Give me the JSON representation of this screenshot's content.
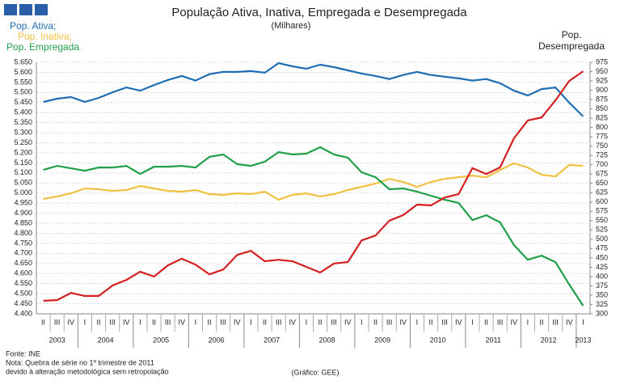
{
  "chart_data": {
    "type": "line",
    "title": "População Ativa, Inativa, Empregada e Desempregada",
    "subtitle": "(Milhares)",
    "y2_label": [
      "Pop.",
      "Desempregada"
    ],
    "categories": [
      "II",
      "III",
      "IV",
      "I",
      "II",
      "III",
      "IV",
      "I",
      "II",
      "III",
      "IV",
      "I",
      "II",
      "III",
      "IV",
      "I",
      "II",
      "III",
      "IV",
      "I",
      "II",
      "III",
      "IV",
      "I",
      "II",
      "III",
      "IV",
      "I",
      "II",
      "III",
      "IV",
      "I",
      "II",
      "III",
      "IV",
      "I",
      "II",
      "III",
      "IV",
      "I"
    ],
    "years": [
      "2003",
      "2004",
      "2005",
      "2006",
      "2007",
      "2008",
      "2009",
      "2010",
      "2011",
      "2012",
      "2013"
    ],
    "series": [
      {
        "name": "Pop. Ativa;",
        "color": "#1f6db3",
        "values": [
          5453,
          5469,
          5477,
          5453,
          5473,
          5501,
          5525,
          5509,
          5537,
          5562,
          5582,
          5559,
          5591,
          5602,
          5602,
          5606,
          5598,
          5646,
          5630,
          5618,
          5638,
          5626,
          5610,
          5594,
          5582,
          5567,
          5587,
          5602,
          5587,
          5578,
          5570,
          5559,
          5567,
          5546,
          5509,
          5485,
          5517,
          5525,
          5449,
          5381
        ]
      },
      {
        "name": "Pop. Inativa;",
        "color": "#f0c040",
        "values": [
          4971,
          4983,
          4999,
          5023,
          5019,
          5011,
          5015,
          5035,
          5023,
          5011,
          5007,
          5015,
          4995,
          4991,
          4999,
          4995,
          5007,
          4967,
          4991,
          4999,
          4983,
          4995,
          5015,
          5031,
          5047,
          5071,
          5055,
          5031,
          5055,
          5071,
          5079,
          5087,
          5079,
          5115,
          5148,
          5127,
          5091,
          5083,
          5140,
          5135
        ]
      },
      {
        "name": "Pop. Empregada",
        "color": "#21a04a",
        "values": [
          5115,
          5135,
          5123,
          5111,
          5127,
          5127,
          5135,
          5095,
          5131,
          5131,
          5135,
          5127,
          5180,
          5192,
          5144,
          5135,
          5156,
          5204,
          5192,
          5196,
          5228,
          5192,
          5176,
          5103,
          5079,
          5019,
          5023,
          5007,
          4987,
          4967,
          4951,
          4866,
          4890,
          4854,
          4742,
          4669,
          4689,
          4657,
          4545,
          4440
        ]
      },
      {
        "name": "Pop. Desempregada",
        "color": "#d42020",
        "axis": "y2",
        "values": [
          335,
          337,
          356,
          348,
          348,
          376,
          391,
          413,
          400,
          430,
          448,
          432,
          406,
          419,
          458,
          469,
          441,
          445,
          441,
          426,
          411,
          435,
          439,
          497,
          510,
          550,
          565,
          593,
          591,
          612,
          621,
          691,
          675,
          693,
          771,
          819,
          827,
          873,
          925,
          951
        ]
      }
    ],
    "ylim": [
      4400,
      5650
    ],
    "yticks": [
      {
        "value": 4400,
        "label": "4.400"
      },
      {
        "value": 4450,
        "label": "4.450"
      },
      {
        "value": 4500,
        "label": "4.500"
      },
      {
        "value": 4550,
        "label": "4.550"
      },
      {
        "value": 4600,
        "label": "4.600"
      },
      {
        "value": 4650,
        "label": "4.650"
      },
      {
        "value": 4700,
        "label": "4.700"
      },
      {
        "value": 4750,
        "label": "4.750"
      },
      {
        "value": 4800,
        "label": "4.800"
      },
      {
        "value": 4850,
        "label": "4.850"
      },
      {
        "value": 4900,
        "label": "4.900"
      },
      {
        "value": 4950,
        "label": "4.950"
      },
      {
        "value": 5000,
        "label": "5.000"
      },
      {
        "value": 5050,
        "label": "5.050"
      },
      {
        "value": 5100,
        "label": "5.100"
      },
      {
        "value": 5150,
        "label": "5.150"
      },
      {
        "value": 5200,
        "label": "5.200"
      },
      {
        "value": 5250,
        "label": "5.250"
      },
      {
        "value": 5300,
        "label": "5.300"
      },
      {
        "value": 5350,
        "label": "5.350"
      },
      {
        "value": 5400,
        "label": "5.400"
      },
      {
        "value": 5450,
        "label": "5.450"
      },
      {
        "value": 5500,
        "label": "5.500"
      },
      {
        "value": 5550,
        "label": "5.550"
      },
      {
        "value": 5600,
        "label": "5.600"
      },
      {
        "value": 5650,
        "label": "5.650"
      }
    ],
    "y2lim": [
      300,
      975
    ],
    "y2ticks": [
      300,
      325,
      350,
      375,
      400,
      425,
      450,
      475,
      500,
      525,
      550,
      575,
      600,
      625,
      650,
      675,
      700,
      725,
      750,
      775,
      800,
      825,
      850,
      875,
      900,
      925,
      950,
      975
    ],
    "grid": true,
    "notes": [
      "Fonte: INE",
      "Nota: Quebra de série no 1º trimestre de 2011",
      "devido à alteração metodológica sem retropolação"
    ],
    "credit": "(Gráfico: GEE)"
  }
}
